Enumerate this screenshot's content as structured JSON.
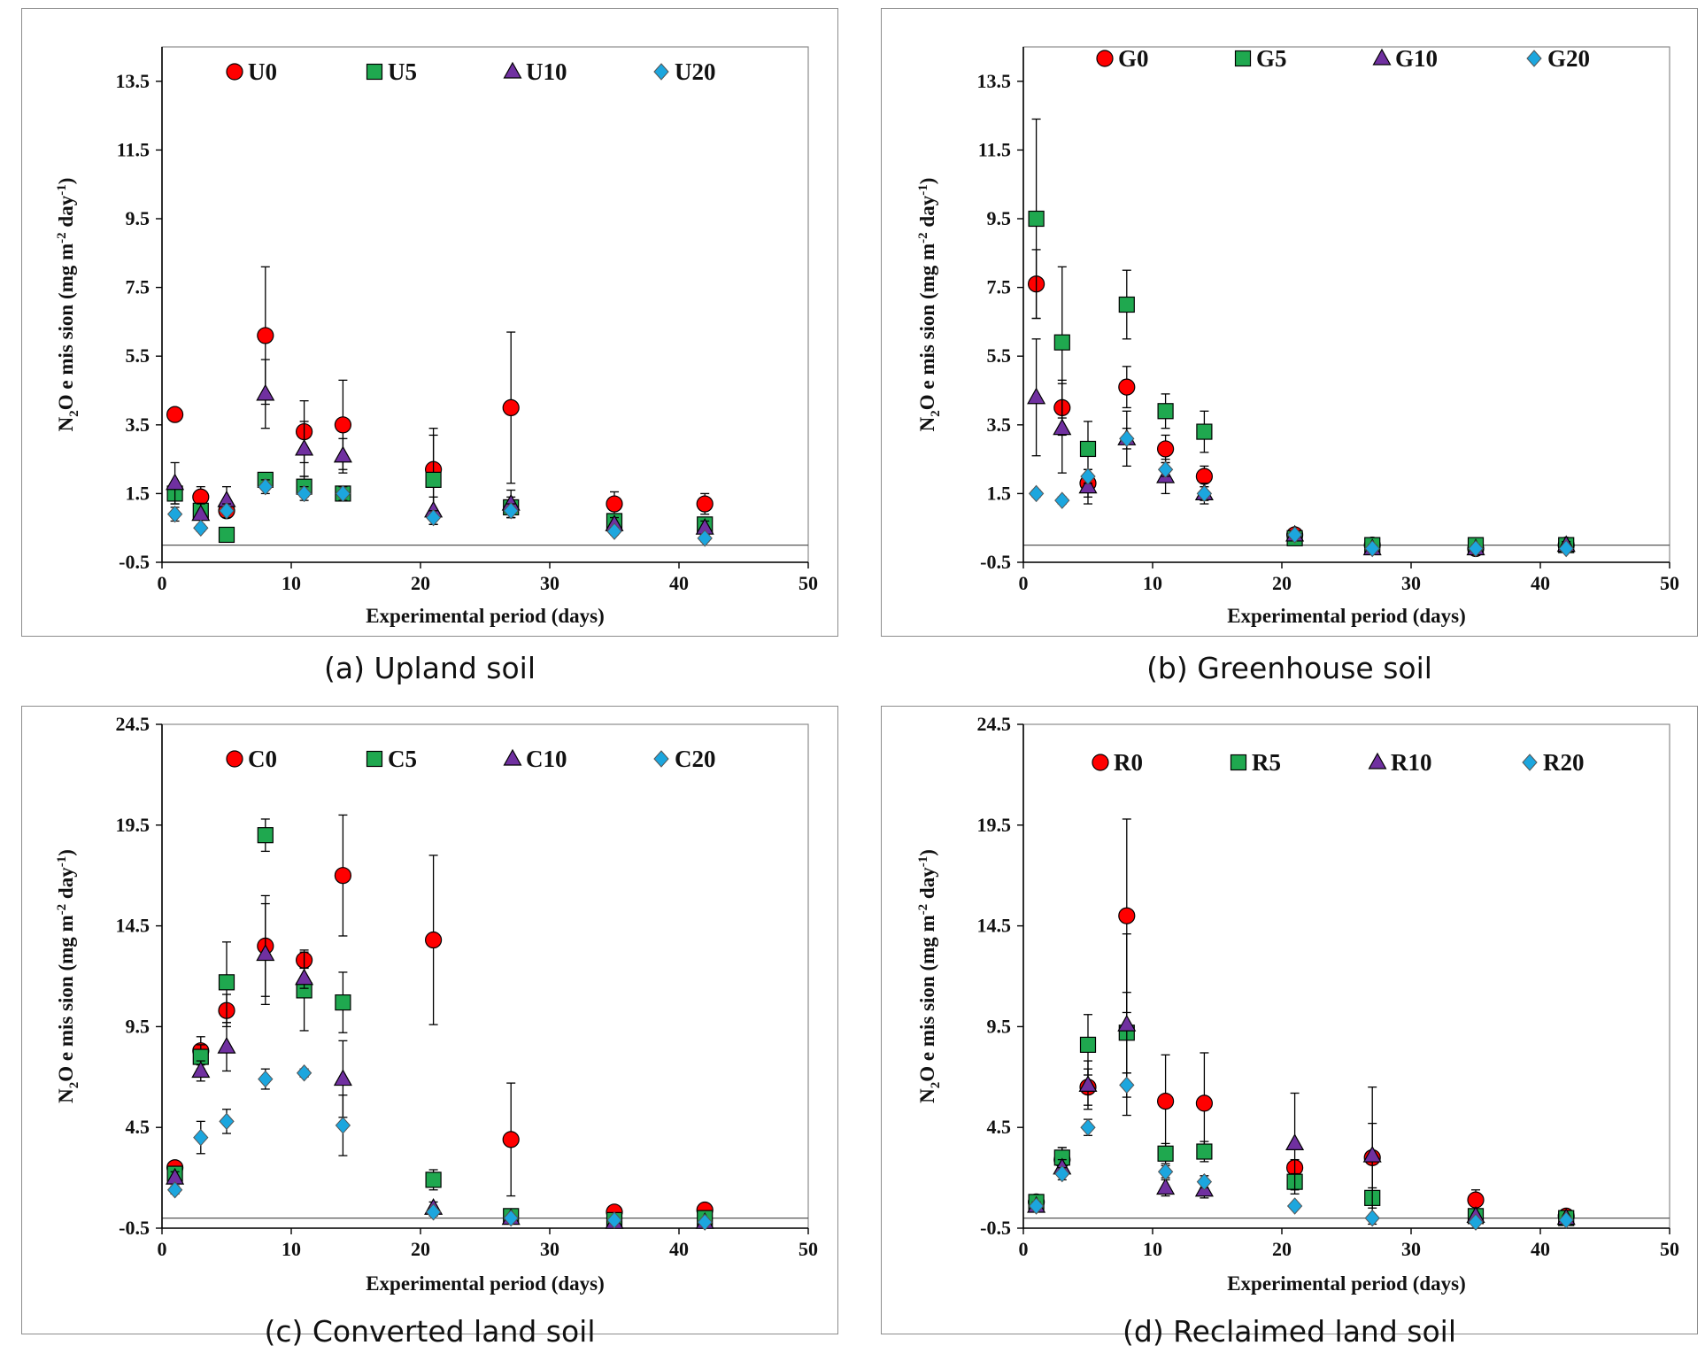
{
  "figure": {
    "markers": {
      "0": {
        "shape": "circle",
        "color": "#ff0000"
      },
      "5": {
        "shape": "square",
        "color": "#1fa84f"
      },
      "10": {
        "shape": "triangle",
        "color": "#7030a0"
      },
      "20": {
        "shape": "diamond",
        "color": "#1ca6de"
      }
    }
  },
  "chart_data": [
    {
      "id": "a",
      "type": "scatter",
      "caption": "(a) Upland soil",
      "xlabel": "Experimental period (days)",
      "ylabel_parts": [
        "N",
        "2",
        "O e mis sion (mg m",
        "-2",
        " day",
        "-1",
        ")"
      ],
      "xlim": [
        0,
        50
      ],
      "ylim": [
        -0.5,
        14.5
      ],
      "xticks": [
        0,
        10,
        20,
        30,
        40,
        50
      ],
      "yticks": [
        -0.5,
        1.5,
        3.5,
        5.5,
        7.5,
        9.5,
        11.5,
        13.5
      ],
      "ytick_labels": [
        "-0.5",
        "1.5",
        "3.5",
        "5.5",
        "7.5",
        "9.5",
        "11.5",
        "13.5"
      ],
      "series": [
        {
          "name": "U0",
          "marker": "0",
          "x": [
            1,
            3,
            5,
            8,
            11,
            14,
            21,
            27,
            35,
            42
          ],
          "y": [
            3.8,
            1.4,
            1.0,
            6.1,
            3.3,
            3.5,
            2.2,
            4.0,
            1.2,
            1.2
          ],
          "err": [
            0,
            0.3,
            0,
            2.0,
            0.9,
            1.3,
            1.2,
            2.2,
            0.35,
            0.3
          ]
        },
        {
          "name": "U5",
          "marker": "5",
          "x": [
            1,
            3,
            5,
            8,
            11,
            14,
            21,
            27,
            35,
            42
          ],
          "y": [
            1.5,
            1.0,
            0.3,
            1.9,
            1.7,
            1.5,
            1.9,
            1.1,
            0.7,
            0.6
          ],
          "err": [
            0.3,
            0.2,
            0,
            0.2,
            0.3,
            0.2,
            1.3,
            0.3,
            0.2,
            0.2
          ]
        },
        {
          "name": "U10",
          "marker": "10",
          "x": [
            1,
            3,
            5,
            8,
            11,
            14,
            21,
            27,
            35,
            42
          ],
          "y": [
            1.8,
            0.9,
            1.3,
            4.4,
            2.8,
            2.6,
            1.0,
            1.2,
            0.6,
            0.5
          ],
          "err": [
            0.6,
            0.3,
            0.4,
            1.0,
            0.8,
            0.5,
            0.4,
            0.4,
            0.2,
            0.2
          ]
        },
        {
          "name": "U20",
          "marker": "20",
          "x": [
            1,
            3,
            5,
            8,
            11,
            14,
            21,
            27,
            35,
            42
          ],
          "y": [
            0.9,
            0.5,
            1.0,
            1.7,
            1.5,
            1.5,
            0.8,
            1.0,
            0.4,
            0.2
          ],
          "err": [
            0.2,
            0.1,
            0.2,
            0.2,
            0.2,
            0.2,
            0.2,
            0.2,
            0.1,
            0.1
          ]
        }
      ]
    },
    {
      "id": "b",
      "type": "scatter",
      "caption": "(b) Greenhouse soil",
      "xlabel": "Experimental period (days)",
      "ylabel_parts": [
        "N",
        "2",
        "O e mis sion (mg m",
        "-2",
        " day",
        "-1",
        ")"
      ],
      "xlim": [
        0,
        50
      ],
      "ylim": [
        -0.5,
        14.5
      ],
      "xticks": [
        0,
        10,
        20,
        30,
        40,
        50
      ],
      "yticks": [
        -0.5,
        1.5,
        3.5,
        5.5,
        7.5,
        9.5,
        11.5,
        13.5
      ],
      "ytick_labels": [
        "-0.5",
        "1.5",
        "3.5",
        "5.5",
        "7.5",
        "9.5",
        "11.5",
        "13.5"
      ],
      "series": [
        {
          "name": "G0",
          "marker": "0",
          "x": [
            1,
            3,
            5,
            8,
            11,
            14,
            21,
            27,
            35,
            42
          ],
          "y": [
            7.6,
            4.0,
            1.8,
            4.6,
            2.8,
            2.0,
            0.3,
            0.0,
            -0.1,
            0.0
          ],
          "err": [
            1.0,
            0.8,
            0.4,
            0.6,
            0.4,
            0.3,
            0.1,
            0.1,
            0.1,
            0.1
          ]
        },
        {
          "name": "G5",
          "marker": "5",
          "x": [
            1,
            3,
            5,
            8,
            11,
            14,
            21,
            27,
            35,
            42
          ],
          "y": [
            9.5,
            5.9,
            2.8,
            7.0,
            3.9,
            3.3,
            0.2,
            0.0,
            0.0,
            0.0
          ],
          "err": [
            2.9,
            2.2,
            0.8,
            1.0,
            0.5,
            0.6,
            0.1,
            0.1,
            0.1,
            0.1
          ]
        },
        {
          "name": "G10",
          "marker": "10",
          "x": [
            1,
            3,
            5,
            8,
            11,
            14,
            21,
            27,
            35,
            42
          ],
          "y": [
            4.3,
            3.4,
            1.7,
            3.1,
            2.0,
            1.5,
            0.3,
            -0.1,
            -0.1,
            0.0
          ],
          "err": [
            1.7,
            1.3,
            0.5,
            0.8,
            0.5,
            0.3,
            0.1,
            0.1,
            0.1,
            0.1
          ]
        },
        {
          "name": "G20",
          "marker": "20",
          "x": [
            1,
            3,
            5,
            8,
            11,
            14,
            21,
            27,
            35,
            42
          ],
          "y": [
            1.5,
            1.3,
            2.0,
            3.1,
            2.2,
            1.5,
            0.3,
            -0.1,
            -0.1,
            -0.1
          ],
          "err": [
            0.1,
            0.1,
            0.2,
            0.3,
            0.2,
            0.2,
            0.1,
            0.1,
            0.1,
            0.1
          ]
        }
      ]
    },
    {
      "id": "c",
      "type": "scatter",
      "caption": "(c) Converted land soil",
      "xlabel": "Experimental period (days)",
      "ylabel_parts": [
        "N",
        "2",
        "O e mis sion (mg m",
        "-2",
        " day",
        "-1",
        ")"
      ],
      "xlim": [
        0,
        50
      ],
      "ylim": [
        -0.5,
        24.5
      ],
      "xticks": [
        0,
        10,
        20,
        30,
        40,
        50
      ],
      "yticks": [
        -0.5,
        4.5,
        9.5,
        14.5,
        19.5,
        24.5
      ],
      "ytick_labels": [
        "-0.5",
        "4.5",
        "9.5",
        "14.5",
        "19.5",
        "24.5"
      ],
      "series": [
        {
          "name": "C0",
          "marker": "0",
          "x": [
            1,
            3,
            5,
            8,
            11,
            14,
            21,
            27,
            35,
            42
          ],
          "y": [
            2.5,
            8.3,
            10.3,
            13.5,
            12.8,
            17.0,
            13.8,
            3.9,
            0.3,
            0.4
          ],
          "err": [
            0.3,
            0.7,
            0.8,
            2.5,
            0.4,
            3.0,
            4.2,
            2.8,
            0.2,
            0.2
          ]
        },
        {
          "name": "C5",
          "marker": "5",
          "x": [
            1,
            3,
            5,
            8,
            11,
            14,
            21,
            27,
            35,
            42
          ],
          "y": [
            2.2,
            8.0,
            11.7,
            19.0,
            11.3,
            10.7,
            1.9,
            0.1,
            -0.1,
            0.0
          ],
          "err": [
            0.3,
            0.6,
            2.0,
            0.8,
            2.0,
            1.5,
            0.5,
            0.1,
            0.1,
            0.1
          ]
        },
        {
          "name": "C10",
          "marker": "10",
          "x": [
            1,
            3,
            5,
            8,
            11,
            14,
            21,
            27,
            35,
            42
          ],
          "y": [
            2.0,
            7.3,
            8.5,
            13.1,
            11.9,
            6.9,
            0.5,
            0.0,
            -0.2,
            -0.2
          ],
          "err": [
            0.3,
            0.5,
            1.2,
            2.5,
            0.5,
            1.9,
            0.3,
            0.1,
            0.1,
            0.1
          ]
        },
        {
          "name": "C20",
          "marker": "20",
          "x": [
            1,
            3,
            5,
            8,
            11,
            14,
            21,
            27,
            35,
            42
          ],
          "y": [
            1.4,
            4.0,
            4.8,
            6.9,
            7.2,
            4.6,
            0.3,
            0.0,
            -0.1,
            -0.2
          ],
          "err": [
            0.2,
            0.8,
            0.6,
            0.5,
            0.2,
            1.5,
            0.2,
            0.1,
            0.1,
            0.1
          ]
        }
      ]
    },
    {
      "id": "d",
      "type": "scatter",
      "caption": "(d) Reclaimed land soil",
      "xlabel": "Experimental period (days)",
      "ylabel_parts": [
        "N",
        "2",
        "O e mis sion (mg m",
        "-2",
        " day",
        "-1",
        ")"
      ],
      "xlim": [
        0,
        50
      ],
      "ylim": [
        -0.5,
        24.5
      ],
      "xticks": [
        0,
        10,
        20,
        30,
        40,
        50
      ],
      "yticks": [
        -0.5,
        4.5,
        9.5,
        14.5,
        19.5,
        24.5
      ],
      "ytick_labels": [
        "-0.5",
        "4.5",
        "9.5",
        "14.5",
        "19.5",
        "24.5"
      ],
      "series": [
        {
          "name": "R0",
          "marker": "0",
          "x": [
            1,
            3,
            5,
            8,
            11,
            14,
            21,
            27,
            35,
            42
          ],
          "y": [
            0.8,
            2.9,
            6.5,
            15.0,
            5.8,
            5.7,
            2.5,
            3.0,
            0.9,
            0.1
          ],
          "err": [
            0.2,
            0.6,
            0.9,
            4.8,
            2.3,
            2.5,
            0.4,
            1.7,
            0.5,
            0.1
          ]
        },
        {
          "name": "R5",
          "marker": "5",
          "x": [
            1,
            3,
            5,
            8,
            11,
            14,
            21,
            27,
            35,
            42
          ],
          "y": [
            0.8,
            3.0,
            8.6,
            9.2,
            3.2,
            3.3,
            1.8,
            1.0,
            0.1,
            0.0
          ],
          "err": [
            0.2,
            0.5,
            1.5,
            2.0,
            0.5,
            0.5,
            0.4,
            0.5,
            0.1,
            0.1
          ]
        },
        {
          "name": "R10",
          "marker": "10",
          "x": [
            1,
            3,
            5,
            8,
            11,
            14,
            21,
            27,
            35,
            42
          ],
          "y": [
            0.6,
            2.5,
            6.6,
            9.6,
            1.5,
            1.4,
            3.7,
            3.1,
            0.1,
            0.0
          ],
          "err": [
            0.2,
            0.4,
            1.2,
            4.5,
            0.4,
            0.4,
            2.5,
            3.4,
            0.1,
            0.1
          ]
        },
        {
          "name": "R20",
          "marker": "20",
          "x": [
            1,
            3,
            5,
            8,
            11,
            14,
            21,
            27,
            35,
            42
          ],
          "y": [
            0.6,
            2.2,
            4.5,
            6.6,
            2.3,
            1.8,
            0.6,
            0.0,
            -0.2,
            -0.1
          ],
          "err": [
            0.1,
            0.3,
            0.4,
            0.6,
            0.3,
            0.3,
            0.1,
            0.1,
            0.1,
            0.1
          ]
        }
      ]
    }
  ]
}
